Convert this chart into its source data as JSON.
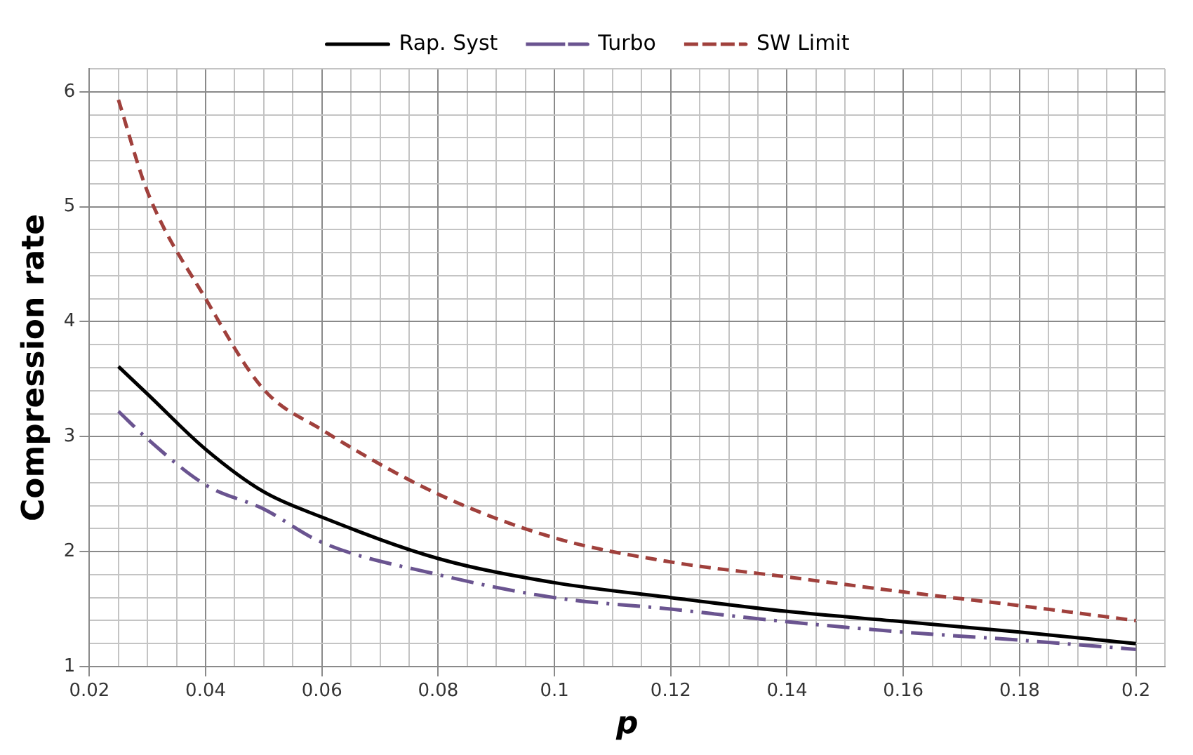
{
  "chart_data": {
    "type": "line",
    "xlabel": "p",
    "ylabel": "Compression rate",
    "xlim": [
      0.02,
      0.205
    ],
    "ylim": [
      1,
      6.2
    ],
    "xticks": [
      0.02,
      {
        "value": 0.025,
        "label": null
      },
      {
        "value": 0.03,
        "label": null
      },
      {
        "value": 0.035,
        "label": null
      },
      0.04,
      {
        "value": 0.045,
        "label": null
      },
      {
        "value": 0.05,
        "label": null
      },
      {
        "value": 0.055,
        "label": null
      },
      0.06,
      {
        "value": 0.065,
        "label": null
      },
      {
        "value": 0.07,
        "label": null
      },
      {
        "value": 0.075,
        "label": null
      },
      0.08,
      {
        "value": 0.085,
        "label": null
      },
      {
        "value": 0.09,
        "label": null
      },
      {
        "value": 0.095,
        "label": null
      },
      0.1,
      {
        "value": 0.105,
        "label": null
      },
      {
        "value": 0.11,
        "label": null
      },
      {
        "value": 0.115,
        "label": null
      },
      0.12,
      {
        "value": 0.125,
        "label": null
      },
      {
        "value": 0.13,
        "label": null
      },
      {
        "value": 0.135,
        "label": null
      },
      0.14,
      {
        "value": 0.145,
        "label": null
      },
      {
        "value": 0.15,
        "label": null
      },
      {
        "value": 0.155,
        "label": null
      },
      0.16,
      {
        "value": 0.165,
        "label": null
      },
      {
        "value": 0.17,
        "label": null
      },
      {
        "value": 0.175,
        "label": null
      },
      0.18,
      {
        "value": 0.185,
        "label": null
      },
      {
        "value": 0.19,
        "label": null
      },
      {
        "value": 0.195,
        "label": null
      },
      0.2,
      {
        "value": 0.205,
        "label": null
      }
    ],
    "yticks": [
      1,
      {
        "value": 1.2,
        "label": null
      },
      {
        "value": 1.4,
        "label": null
      },
      {
        "value": 1.6,
        "label": null
      },
      {
        "value": 1.8,
        "label": null
      },
      2,
      {
        "value": 2.2,
        "label": null
      },
      {
        "value": 2.4,
        "label": null
      },
      {
        "value": 2.6,
        "label": null
      },
      {
        "value": 2.8,
        "label": null
      },
      3,
      {
        "value": 3.2,
        "label": null
      },
      {
        "value": 3.4,
        "label": null
      },
      {
        "value": 3.6,
        "label": null
      },
      {
        "value": 3.8,
        "label": null
      },
      4,
      {
        "value": 4.2,
        "label": null
      },
      {
        "value": 4.4,
        "label": null
      },
      {
        "value": 4.6,
        "label": null
      },
      {
        "value": 4.8,
        "label": null
      },
      5,
      {
        "value": 5.2,
        "label": null
      },
      {
        "value": 5.4,
        "label": null
      },
      {
        "value": 5.6,
        "label": null
      },
      {
        "value": 5.8,
        "label": null
      },
      6,
      {
        "value": 6.2,
        "label": null
      }
    ],
    "x": [
      0.025,
      0.03,
      0.04,
      0.05,
      0.06,
      0.08,
      0.1,
      0.12,
      0.14,
      0.16,
      0.18,
      0.2
    ],
    "series": [
      {
        "name": "Rap. Syst",
        "color": "#000000",
        "line_style": "solid",
        "values": [
          3.61,
          3.37,
          2.89,
          2.52,
          2.3,
          1.94,
          1.73,
          1.6,
          1.48,
          1.39,
          1.3,
          1.2
        ]
      },
      {
        "name": "Turbo",
        "color": "#6a5490",
        "line_style": "dashdot",
        "values": [
          3.22,
          2.98,
          2.58,
          2.37,
          2.08,
          1.8,
          1.6,
          1.5,
          1.39,
          1.3,
          1.23,
          1.15
        ]
      },
      {
        "name": "SW Limit",
        "color": "#a0403c",
        "line_style": "dashed",
        "values": [
          5.93,
          5.13,
          4.2,
          3.41,
          3.06,
          2.5,
          2.12,
          1.91,
          1.78,
          1.65,
          1.53,
          1.4
        ]
      }
    ],
    "grid": true,
    "legend": "top",
    "marker": "none"
  }
}
